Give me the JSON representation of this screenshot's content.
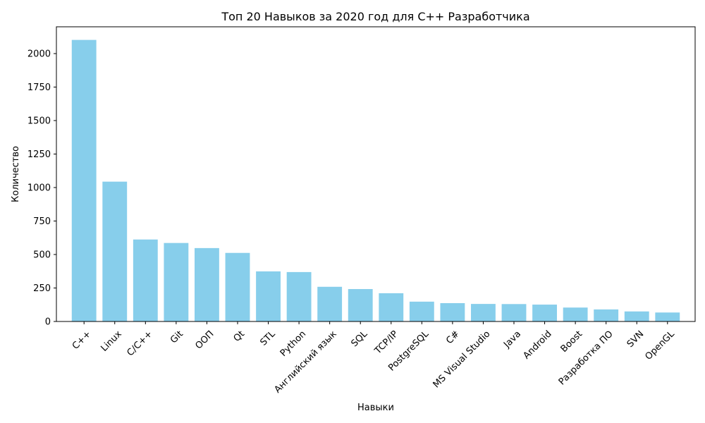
{
  "chart_data": {
    "type": "bar",
    "title": "Топ 20 Навыков за 2020 год для C++ Разработчика",
    "xlabel": "Навыки",
    "ylabel": "Количество",
    "ylim": [
      0,
      2200
    ],
    "yticks": [
      0,
      250,
      500,
      750,
      1000,
      1250,
      1500,
      1750,
      2000
    ],
    "grid": false,
    "bar_color": "#87ceeb",
    "categories": [
      "C++",
      "Linux",
      "C/C++",
      "Git",
      "ООП",
      "Qt",
      "STL",
      "Python",
      "Английский язык",
      "SQL",
      "TCP/IP",
      "PostgreSQL",
      "C#",
      "MS Visual Studio",
      "Java",
      "Android",
      "Boost",
      "Разработка ПО",
      "SVN",
      "OpenGL"
    ],
    "values": [
      2102,
      1044,
      612,
      586,
      548,
      512,
      374,
      369,
      259,
      242,
      211,
      148,
      137,
      131,
      130,
      126,
      104,
      90,
      75,
      67
    ]
  }
}
